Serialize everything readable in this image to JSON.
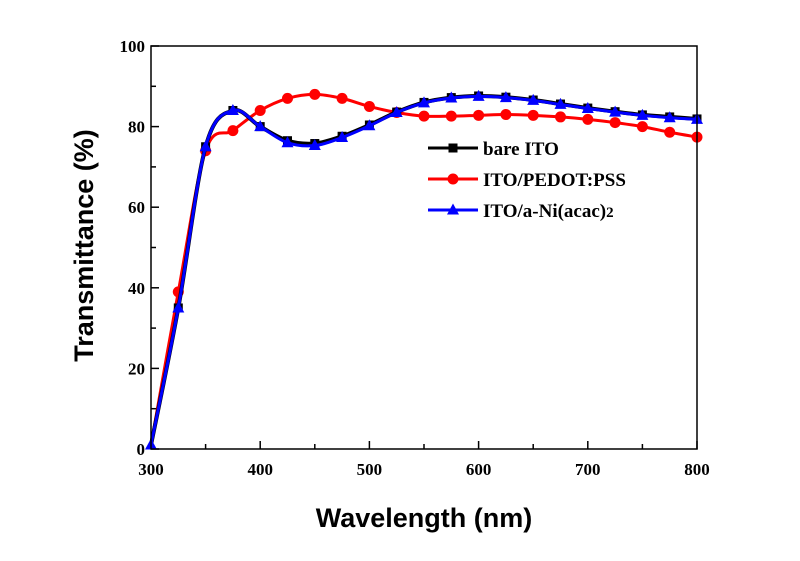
{
  "chart_data": {
    "type": "line",
    "title": "",
    "xlabel": "Wavelength (nm)",
    "ylabel": "Transmittance (%)",
    "xlim": [
      300,
      800
    ],
    "ylim": [
      0,
      100
    ],
    "xticks": [
      300,
      400,
      500,
      600,
      700,
      800
    ],
    "yticks": [
      0,
      20,
      40,
      60,
      80,
      100
    ],
    "grid": false,
    "legend_position": "right-center",
    "x": [
      300,
      325,
      350,
      375,
      400,
      425,
      450,
      475,
      500,
      525,
      550,
      575,
      600,
      625,
      650,
      675,
      700,
      725,
      750,
      775,
      800
    ],
    "series": [
      {
        "name": "bare ITO",
        "color": "#000000",
        "marker": "square",
        "values": [
          1,
          35,
          75,
          84,
          80,
          76.5,
          75.8,
          77.6,
          80.4,
          83.6,
          86,
          87.2,
          87.6,
          87.3,
          86.6,
          85.6,
          84.6,
          83.7,
          82.9,
          82.4,
          81.9
        ]
      },
      {
        "name": "ITO/PEDOT:PSS",
        "color": "#ff0000",
        "marker": "circle",
        "values": [
          1,
          39,
          74,
          79,
          84,
          87,
          88,
          87,
          85,
          83.5,
          82.6,
          82.6,
          82.8,
          83,
          82.8,
          82.4,
          81.8,
          81,
          80,
          78.6,
          77.4
        ]
      },
      {
        "name": "ITO/a-Ni(acac)2",
        "color": "#0000ff",
        "marker": "triangle",
        "values": [
          1,
          35,
          75,
          84,
          80,
          76,
          75.3,
          77.3,
          80.2,
          83.5,
          85.9,
          87.1,
          87.5,
          87.2,
          86.5,
          85.5,
          84.5,
          83.6,
          82.8,
          82.2,
          81.8
        ]
      }
    ]
  }
}
